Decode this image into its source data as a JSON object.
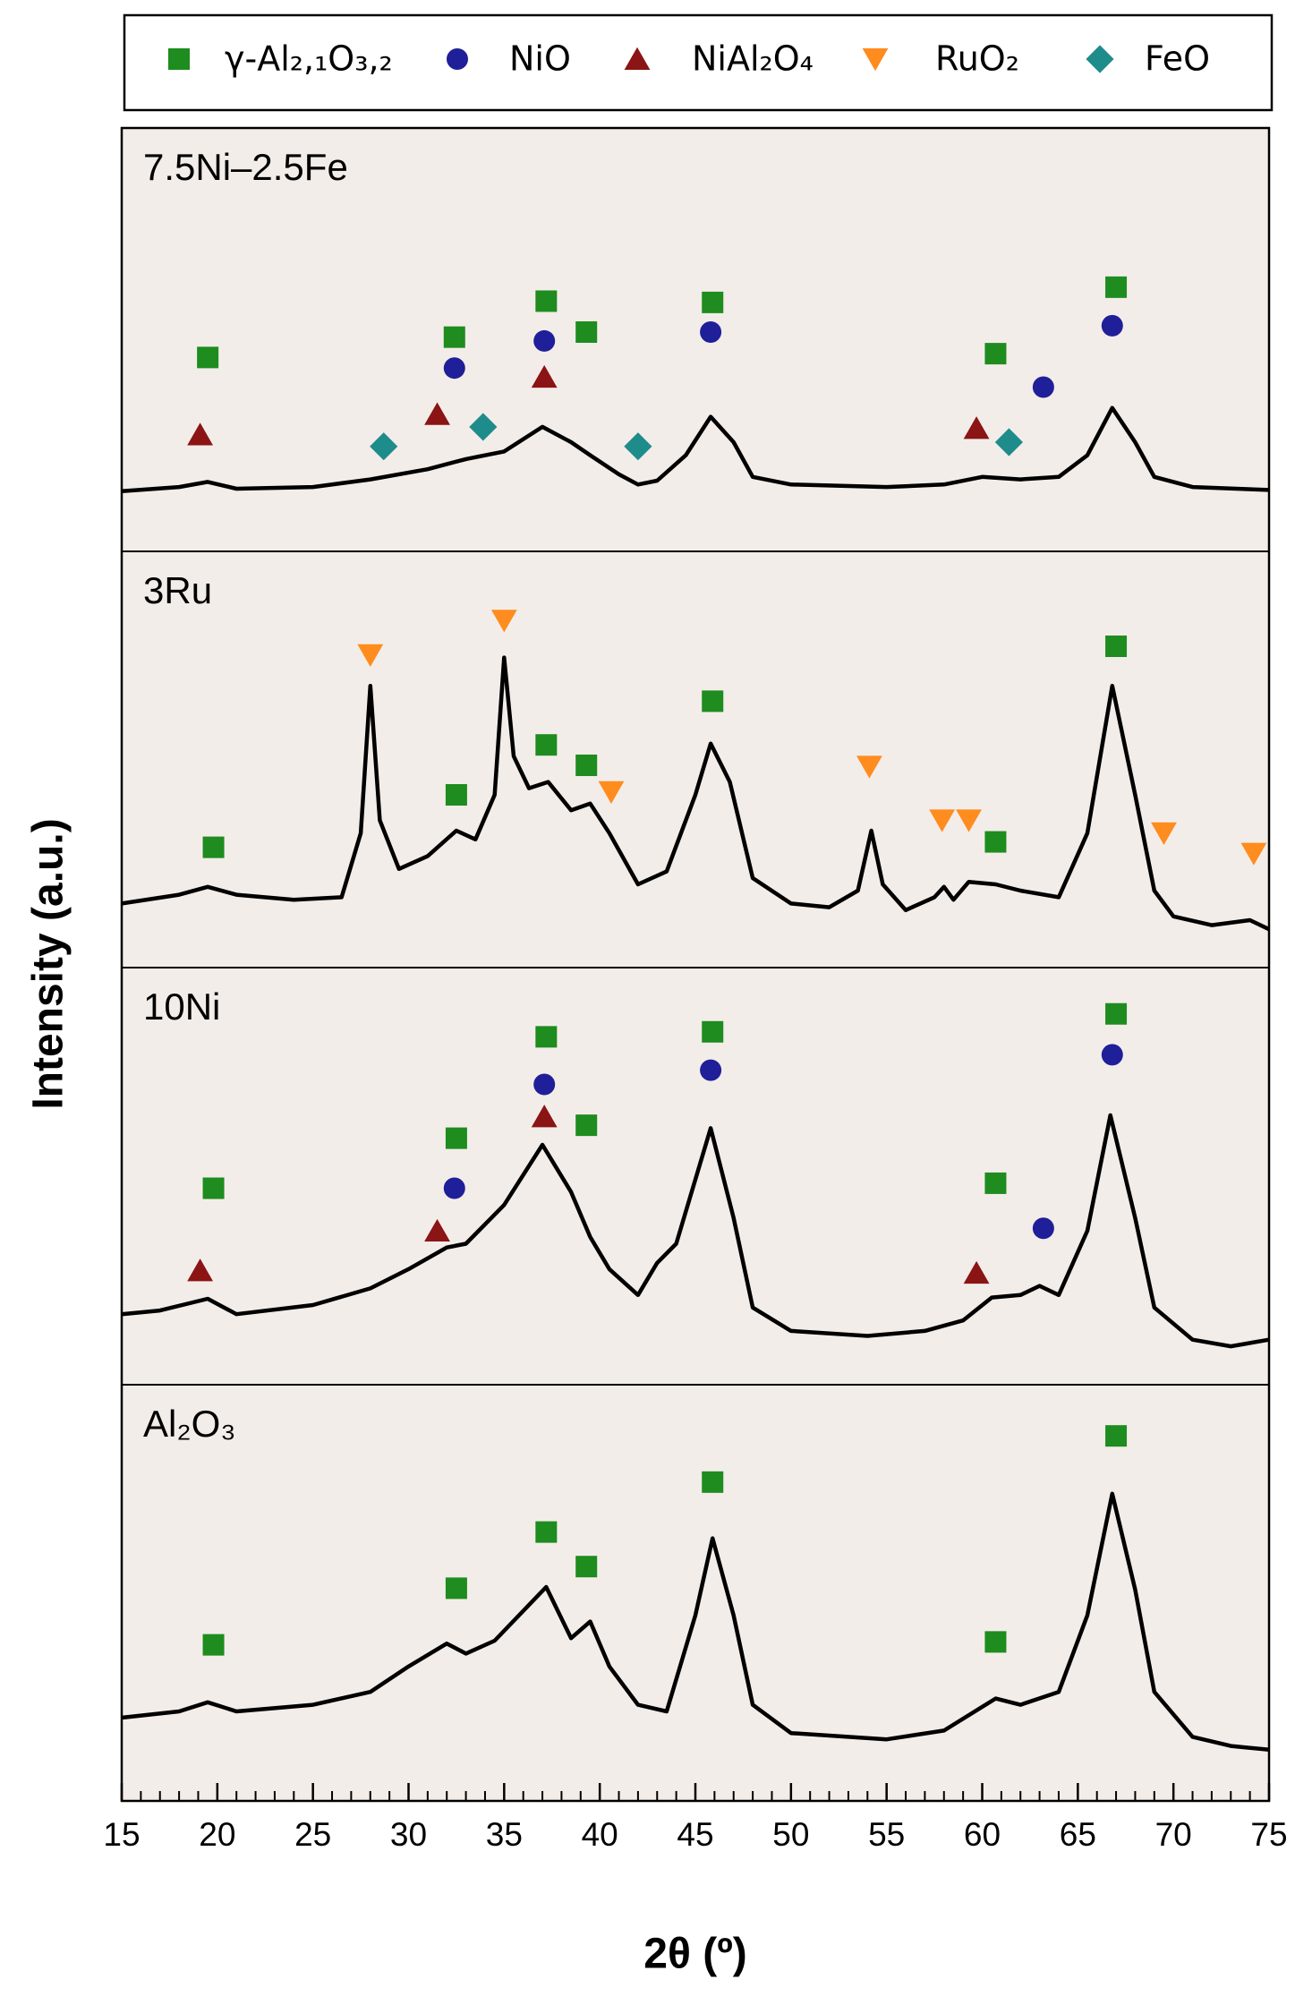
{
  "chart_data": {
    "type": "line",
    "xlabel": "2θ (º)",
    "ylabel": "Intensity (a.u.)",
    "xlim": [
      15,
      75
    ],
    "xticks": [
      15,
      20,
      25,
      30,
      35,
      40,
      45,
      50,
      55,
      60,
      65,
      70,
      75
    ],
    "xminorticks": [
      16,
      17,
      18,
      19,
      21,
      22,
      23,
      24,
      26,
      27,
      28,
      29,
      31,
      32,
      33,
      34,
      36,
      37,
      38,
      39,
      41,
      42,
      43,
      44,
      46,
      47,
      48,
      49,
      51,
      52,
      53,
      54,
      56,
      57,
      58,
      59,
      61,
      62,
      63,
      64,
      66,
      67,
      68,
      69,
      71,
      72,
      73,
      74
    ],
    "line_color": "#000000",
    "panel_color": "#f3ede9",
    "legend": [
      {
        "name": "γ-Al₂,₁O₃,₂",
        "color": "#1e8c1e",
        "marker": "square"
      },
      {
        "name": "NiO",
        "color": "#1f1f99",
        "marker": "circle"
      },
      {
        "name": "NiAl₂O₄",
        "color": "#8b1414",
        "marker": "triangle-up"
      },
      {
        "name": "RuO₂",
        "color": "#ff8c1e",
        "marker": "triangle-down"
      },
      {
        "name": "FeO",
        "color": "#1f8c8c",
        "marker": "diamond"
      }
    ],
    "panels": [
      {
        "label": "7.5Ni–2.5Fe",
        "ylim": [
          0,
          100
        ],
        "x": [
          15,
          18,
          19.5,
          21,
          25,
          28,
          31,
          33,
          35,
          37,
          38.5,
          39.5,
          41,
          42,
          43,
          44.5,
          45.8,
          47,
          48,
          50,
          55,
          58,
          60,
          62,
          64,
          65.5,
          66.8,
          68,
          69,
          71,
          75
        ],
        "values": [
          14.2,
          15.2,
          16.4,
          14.8,
          15.2,
          17.0,
          19.4,
          21.8,
          23.6,
          29.4,
          25.8,
          22.7,
          18.2,
          15.8,
          16.7,
          22.7,
          31.8,
          25.8,
          17.6,
          15.8,
          15.2,
          15.8,
          17.6,
          17.0,
          17.6,
          22.7,
          33.9,
          25.8,
          17.6,
          15.2,
          14.5
        ],
        "markers": [
          {
            "phase": 0,
            "x": [
              19.5,
              32.4,
              37.2,
              39.3,
              45.9,
              60.7,
              67
            ],
            "values": [
              45.8,
              50.6,
              59.1,
              51.8,
              58.8,
              46.7,
              62.4
            ]
          },
          {
            "phase": 1,
            "x": [
              32.4,
              37.1,
              45.8,
              63.2,
              66.8
            ],
            "values": [
              43.3,
              49.7,
              51.8,
              38.8,
              53.3
            ]
          },
          {
            "phase": 2,
            "x": [
              19.1,
              31.5,
              37.1,
              59.7
            ],
            "values": [
              27.6,
              32.4,
              41.2,
              29.1
            ]
          },
          {
            "phase": 4,
            "x": [
              28.7,
              33.9,
              42.0,
              61.4
            ],
            "values": [
              24.8,
              29.4,
              24.8,
              25.8
            ]
          }
        ]
      },
      {
        "label": "3Ru",
        "ylim": [
          0,
          100
        ],
        "x": [
          15,
          18,
          19.5,
          21,
          24,
          26.5,
          27.5,
          28,
          28.5,
          29.5,
          31,
          32.5,
          33.5,
          34.5,
          35,
          35.5,
          36.3,
          37.3,
          38.5,
          39.5,
          40.5,
          42,
          43.5,
          45,
          45.8,
          46.8,
          48,
          50,
          52,
          53.5,
          54.2,
          54.8,
          56,
          57.5,
          58,
          58.5,
          59.3,
          60.7,
          62,
          64,
          65.5,
          66.8,
          68,
          69,
          70,
          72,
          74,
          75
        ],
        "values": [
          15.4,
          17.5,
          19.4,
          17.5,
          16.3,
          16.9,
          32.3,
          67.7,
          35.4,
          23.7,
          26.8,
          32.9,
          30.8,
          41.5,
          74.5,
          50.8,
          43.1,
          44.6,
          37.8,
          39.4,
          32.3,
          20.0,
          23.1,
          41.5,
          53.8,
          44.6,
          21.5,
          15.4,
          14.5,
          18.5,
          32.9,
          20.0,
          13.8,
          16.9,
          19.4,
          16.3,
          20.6,
          20.0,
          18.5,
          16.9,
          32.3,
          67.7,
          41.5,
          18.5,
          12.3,
          10.2,
          11.4,
          9.2
        ],
        "markers": [
          {
            "phase": 0,
            "x": [
              19.8,
              32.5,
              37.2,
              39.3,
              45.9,
              60.7,
              67
            ],
            "values": [
              28.9,
              41.5,
              53.5,
              48.6,
              64.0,
              30.2,
              77.2
            ]
          },
          {
            "phase": 3,
            "x": [
              28,
              35,
              40.6,
              54.1,
              57.9,
              59.3,
              69.5,
              74.2
            ],
            "values": [
              75.1,
              83.4,
              42.2,
              48.3,
              35.4,
              35.4,
              32.3,
              27.4
            ]
          }
        ]
      },
      {
        "label": "10Ni",
        "ylim": [
          0,
          100
        ],
        "x": [
          15,
          17,
          19.5,
          21,
          25,
          28,
          30,
          32,
          33,
          35,
          37,
          38.5,
          39.5,
          40.5,
          42,
          43,
          44,
          45.8,
          47,
          48,
          50,
          54,
          57,
          59,
          60.5,
          62,
          63,
          64,
          65.5,
          66.7,
          68,
          69,
          71,
          73,
          75
        ],
        "values": [
          16.9,
          17.8,
          20.6,
          16.9,
          19.1,
          23.1,
          27.7,
          32.9,
          33.8,
          43.1,
          57.5,
          46.2,
          35.4,
          27.7,
          21.5,
          29.2,
          33.8,
          61.5,
          40.0,
          18.5,
          12.9,
          11.7,
          12.9,
          15.4,
          20.9,
          21.5,
          23.7,
          21.5,
          36.9,
          64.6,
          40.0,
          18.5,
          10.8,
          9.2,
          10.8
        ],
        "markers": [
          {
            "phase": 0,
            "x": [
              19.8,
              32.5,
              37.2,
              39.3,
              45.9,
              60.7,
              67
            ],
            "values": [
              47.1,
              59.1,
              83.4,
              62.2,
              84.6,
              48.3,
              88.9
            ]
          },
          {
            "phase": 1,
            "x": [
              32.4,
              37.1,
              45.8,
              63.2,
              66.8
            ],
            "values": [
              47.1,
              72.0,
              75.4,
              37.5,
              79.1
            ]
          },
          {
            "phase": 2,
            "x": [
              19.1,
              31.5,
              37.1,
              59.7
            ],
            "values": [
              27.4,
              36.9,
              64.3,
              26.8
            ]
          }
        ]
      },
      {
        "label": "Al₂O₃",
        "ylim": [
          0,
          100
        ],
        "x": [
          15,
          18,
          19.5,
          21,
          25,
          28,
          30,
          32,
          33,
          34.5,
          37.2,
          38.5,
          39.5,
          40.5,
          42,
          43.5,
          45,
          45.9,
          47,
          48,
          50,
          55,
          58,
          60.7,
          62,
          64,
          65.5,
          66.8,
          68,
          69,
          71,
          73,
          75
        ],
        "values": [
          20.0,
          21.5,
          23.7,
          21.5,
          23.1,
          26.2,
          32.3,
          37.8,
          35.4,
          38.5,
          51.4,
          39.1,
          43.1,
          32.3,
          23.1,
          21.5,
          44.6,
          63.1,
          44.6,
          23.1,
          16.3,
          14.8,
          16.9,
          24.6,
          23.1,
          26.2,
          44.6,
          73.8,
          50.8,
          26.2,
          15.4,
          13.2,
          12.3
        ],
        "markers": [
          {
            "phase": 0,
            "x": [
              19.8,
              32.5,
              37.2,
              39.3,
              45.9,
              60.7,
              67
            ],
            "values": [
              37.5,
              51.1,
              64.6,
              56.3,
              76.6,
              38.2,
              87.7
            ]
          }
        ]
      }
    ]
  }
}
